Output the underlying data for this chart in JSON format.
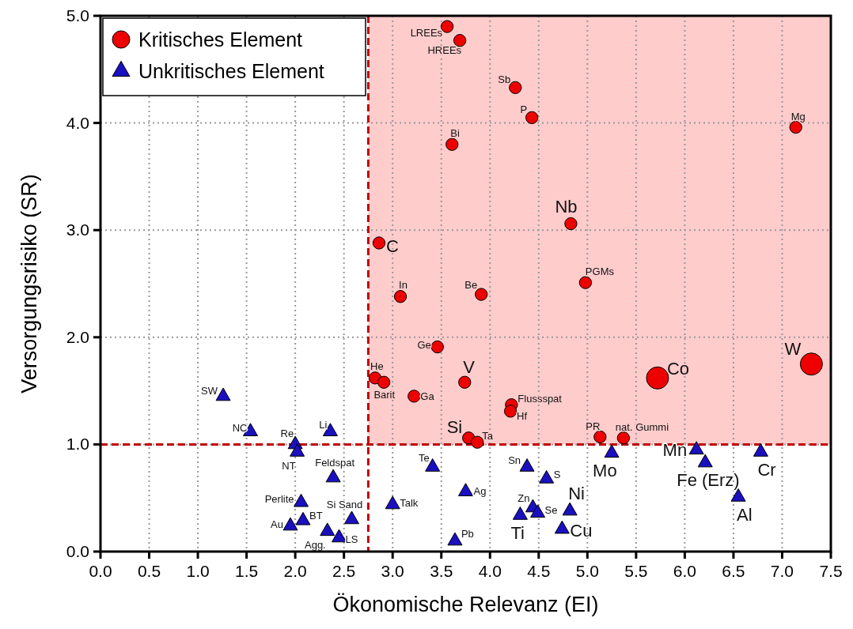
{
  "chart_data": {
    "type": "scatter",
    "xlabel": "Ökonomische Relevanz (EI)",
    "ylabel": "Versorgungsrisiko (SR)",
    "xlim": [
      0,
      7.5
    ],
    "ylim": [
      0,
      5
    ],
    "xticks": [
      {
        "value": 0,
        "label": "0.0"
      },
      {
        "value": 0.5,
        "label": "0.5"
      },
      {
        "value": 1,
        "label": "1.0"
      },
      {
        "value": 1.5,
        "label": "1.5"
      },
      {
        "value": 2,
        "label": "2.0"
      },
      {
        "value": 2.5,
        "label": "2.5"
      },
      {
        "value": 3,
        "label": "3.0"
      },
      {
        "value": 3.5,
        "label": "3.5"
      },
      {
        "value": 4,
        "label": "4.0"
      },
      {
        "value": 4.5,
        "label": "4.5"
      },
      {
        "value": 5,
        "label": "5.0"
      },
      {
        "value": 5.5,
        "label": "5.5"
      },
      {
        "value": 6,
        "label": "6.0"
      },
      {
        "value": 6.5,
        "label": "6.5"
      },
      {
        "value": 7,
        "label": "7.0"
      },
      {
        "value": 7.5,
        "label": "7.5"
      }
    ],
    "yticks": [
      {
        "value": 0,
        "label": "0.0"
      },
      {
        "value": 1,
        "label": "1.0"
      },
      {
        "value": 2,
        "label": "2.0"
      },
      {
        "value": 3,
        "label": "3.0"
      },
      {
        "value": 4,
        "label": "4.0"
      },
      {
        "value": 5,
        "label": "5.0"
      }
    ],
    "grid": true,
    "legend": "top left",
    "series": [
      {
        "name": "Kritisches Element",
        "type": "bubble",
        "marker": "circle",
        "color": "#ee0000",
        "x": [
          3.56,
          3.69,
          4.26,
          4.43,
          3.61,
          7.14,
          4.83,
          2.86,
          3.08,
          3.91,
          4.98,
          3.46,
          2.82,
          2.91,
          3.22,
          3.74,
          5.72,
          7.3,
          4.22,
          4.21,
          3.78,
          3.87,
          5.13,
          5.37
        ],
        "values": [
          4.9,
          4.77,
          4.33,
          4.05,
          3.8,
          3.96,
          3.06,
          2.88,
          2.38,
          2.4,
          2.51,
          1.91,
          1.62,
          1.58,
          1.45,
          1.58,
          1.62,
          1.75,
          1.37,
          1.31,
          1.06,
          1.02,
          1.07,
          1.06
        ],
        "sizes": [
          0.3,
          0.3,
          0.3,
          0.3,
          0.3,
          0.3,
          0.3,
          0.3,
          0.3,
          0.3,
          0.3,
          0.3,
          0.3,
          0.3,
          0.3,
          0.3,
          1,
          1,
          0.3,
          0.3,
          0.3,
          0.3,
          0.3,
          0.3
        ]
      },
      {
        "name": "Unkritisches Element",
        "marker": "triangle",
        "color": "#1a10c0",
        "x": [
          1.26,
          1.54,
          2.36,
          2.0,
          2.02,
          2.39,
          3.41,
          2.06,
          3.0,
          2.58,
          2.08,
          1.95,
          2.33,
          2.45,
          3.64,
          3.75,
          4.38,
          4.58,
          4.44,
          4.49,
          4.31,
          4.82,
          4.74,
          5.25,
          6.12,
          6.21,
          6.78,
          6.55
        ],
        "values": [
          1.45,
          1.12,
          1.12,
          1.0,
          0.93,
          0.69,
          0.79,
          0.46,
          0.44,
          0.3,
          0.29,
          0.24,
          0.19,
          0.13,
          0.1,
          0.56,
          0.79,
          0.68,
          0.41,
          0.36,
          0.34,
          0.38,
          0.21,
          0.92,
          0.95,
          0.83,
          0.93,
          0.51
        ]
      }
    ],
    "ref_lines": [
      {
        "axis": "x",
        "value": 2.75,
        "color": "#c00000",
        "line_style": "dashed"
      },
      {
        "axis": "y",
        "value": 1,
        "color": "#c00000",
        "line_style": "dashed"
      }
    ],
    "bands": [
      {
        "axis": "x",
        "from": 2.75,
        "to": 7.5,
        "color": "#ffcccc"
      }
    ],
    "annotations": [
      {
        "text": "LREEs",
        "x": 3.56,
        "y": 4.9
      },
      {
        "text": "HREEs",
        "x": 3.69,
        "y": 4.77
      },
      {
        "text": "Sb",
        "x": 4.26,
        "y": 4.33
      },
      {
        "text": "P",
        "x": 4.43,
        "y": 4.05
      },
      {
        "text": "Bi",
        "x": 3.61,
        "y": 3.8
      },
      {
        "text": "Mg",
        "x": 7.14,
        "y": 3.96
      },
      {
        "text": "Nb",
        "x": 4.83,
        "y": 3.06
      },
      {
        "text": "C",
        "x": 2.86,
        "y": 2.88
      },
      {
        "text": "In",
        "x": 3.08,
        "y": 2.38
      },
      {
        "text": "Be",
        "x": 3.91,
        "y": 2.4
      },
      {
        "text": "PGMs",
        "x": 4.98,
        "y": 2.51
      },
      {
        "text": "Ge",
        "x": 3.46,
        "y": 1.91
      },
      {
        "text": "He",
        "x": 2.82,
        "y": 1.62
      },
      {
        "text": "Barit",
        "x": 2.91,
        "y": 1.58
      },
      {
        "text": "Ga",
        "x": 3.22,
        "y": 1.45
      },
      {
        "text": "V",
        "x": 3.74,
        "y": 1.58
      },
      {
        "text": "Co",
        "x": 5.72,
        "y": 1.62
      },
      {
        "text": "W",
        "x": 7.3,
        "y": 1.75
      },
      {
        "text": "Flussspat",
        "x": 4.22,
        "y": 1.37
      },
      {
        "text": "Hf",
        "x": 4.21,
        "y": 1.31
      },
      {
        "text": "Si",
        "x": 3.78,
        "y": 1.06
      },
      {
        "text": "Ta",
        "x": 3.87,
        "y": 1.02
      },
      {
        "text": "PR",
        "x": 5.13,
        "y": 1.07
      },
      {
        "text": "nat. Gummi",
        "x": 5.37,
        "y": 1.06
      },
      {
        "text": "SW",
        "x": 1.26,
        "y": 1.45
      },
      {
        "text": "NC",
        "x": 1.54,
        "y": 1.12
      },
      {
        "text": "Li",
        "x": 2.36,
        "y": 1.12
      },
      {
        "text": "Re",
        "x": 2.0,
        "y": 1.0
      },
      {
        "text": "NT",
        "x": 2.02,
        "y": 0.93
      },
      {
        "text": "Feldspat",
        "x": 2.39,
        "y": 0.69
      },
      {
        "text": "Te",
        "x": 3.41,
        "y": 0.79
      },
      {
        "text": "Perlite",
        "x": 2.06,
        "y": 0.46
      },
      {
        "text": "Talk",
        "x": 3.0,
        "y": 0.44
      },
      {
        "text": "Si Sand",
        "x": 2.58,
        "y": 0.3
      },
      {
        "text": "BT",
        "x": 2.08,
        "y": 0.29
      },
      {
        "text": "Au",
        "x": 1.95,
        "y": 0.24
      },
      {
        "text": "Agg.",
        "x": 2.33,
        "y": 0.19
      },
      {
        "text": "LS",
        "x": 2.45,
        "y": 0.13
      },
      {
        "text": "Pb",
        "x": 3.64,
        "y": 0.1
      },
      {
        "text": "Ag",
        "x": 3.75,
        "y": 0.56
      },
      {
        "text": "Sn",
        "x": 4.38,
        "y": 0.79
      },
      {
        "text": "S",
        "x": 4.58,
        "y": 0.68
      },
      {
        "text": "Zn",
        "x": 4.44,
        "y": 0.41
      },
      {
        "text": "Se",
        "x": 4.49,
        "y": 0.36
      },
      {
        "text": "Ti",
        "x": 4.31,
        "y": 0.34
      },
      {
        "text": "Ni",
        "x": 4.82,
        "y": 0.38
      },
      {
        "text": "Cu",
        "x": 4.74,
        "y": 0.21
      },
      {
        "text": "Mo",
        "x": 5.25,
        "y": 0.92
      },
      {
        "text": "Mn",
        "x": 6.12,
        "y": 0.95
      },
      {
        "text": "Fe (Erz)",
        "x": 6.21,
        "y": 0.83
      },
      {
        "text": "Cr",
        "x": 6.78,
        "y": 0.93
      },
      {
        "text": "Al",
        "x": 6.55,
        "y": 0.51
      }
    ]
  }
}
